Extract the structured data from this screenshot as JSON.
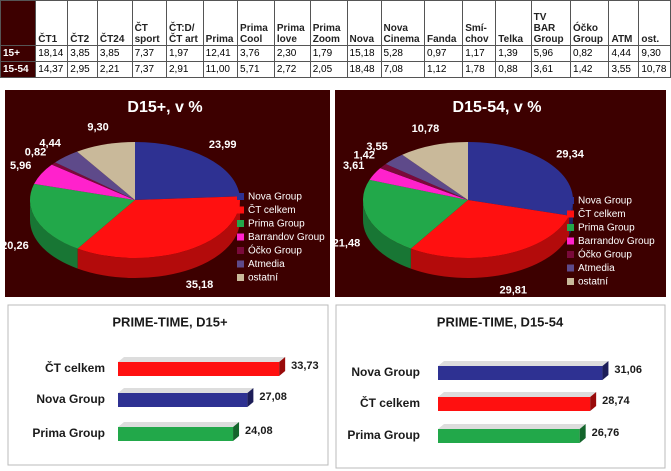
{
  "table": {
    "header": [
      "",
      "ČT1",
      "ČT2",
      "ČT24",
      "ČT\nsport",
      "ČT:D/\nČT art",
      "Prima",
      "Prima\nCool",
      "Prima\nlove",
      "Prima\nZoom",
      "Nova",
      "Nova\nCinema",
      "Fanda",
      "Smí-\nchov",
      "Telka",
      "TV BAR\nGroup",
      "Óčko\nGroup",
      "ATM",
      "ost."
    ],
    "rows": [
      [
        "15+",
        "18,14",
        "3,85",
        "3,85",
        "7,37",
        "1,97",
        "12,41",
        "3,76",
        "2,30",
        "1,79",
        "15,18",
        "5,28",
        "0,97",
        "1,17",
        "1,39",
        "5,96",
        "0,82",
        "4,44",
        "9,30"
      ],
      [
        "15-54",
        "14,37",
        "2,95",
        "2,21",
        "7,37",
        "2,91",
        "11,00",
        "5,71",
        "2,72",
        "2,05",
        "18,48",
        "7,08",
        "1,12",
        "1,78",
        "0,88",
        "3,61",
        "1,42",
        "3,55",
        "10,78"
      ]
    ]
  },
  "chart_data": [
    {
      "type": "pie",
      "title": "D15+, v %",
      "categories": [
        "Nova Group",
        "ČT celkem",
        "Prima Group",
        "Barrandov Group",
        "Óčko Group",
        "Atmedia",
        "ostatní"
      ],
      "values": [
        23.99,
        35.18,
        20.26,
        5.96,
        0.82,
        4.44,
        9.3
      ],
      "value_labels": [
        "23,99",
        "35,18",
        "20,26",
        "5,96",
        "0,82",
        "4,44",
        "9,30"
      ],
      "colors": [
        "#2e3192",
        "#ff1010",
        "#22a84a",
        "#ff22cc",
        "#7a0a3a",
        "#5e4a8a",
        "#c9b99a"
      ]
    },
    {
      "type": "pie",
      "title": "D15-54, v %",
      "categories": [
        "Nova Group",
        "ČT celkem",
        "Prima Group",
        "Barrandov Group",
        "Óčko Group",
        "Atmedia",
        "ostatní"
      ],
      "values": [
        29.34,
        29.81,
        21.48,
        3.61,
        1.42,
        3.55,
        10.78
      ],
      "value_labels": [
        "29,34",
        "29,81",
        "21,48",
        "3,61",
        "1,42",
        "3,55",
        "10,78"
      ],
      "colors": [
        "#2e3192",
        "#ff1010",
        "#22a84a",
        "#ff22cc",
        "#7a0a3a",
        "#5e4a8a",
        "#c9b99a"
      ]
    },
    {
      "type": "bar",
      "orientation": "horizontal",
      "title": "PRIME-TIME, D15+",
      "categories": [
        "ČT celkem",
        "Nova Group",
        "Prima Group"
      ],
      "values": [
        33.73,
        27.08,
        24.08
      ],
      "value_labels": [
        "33,73",
        "27,08",
        "24,08"
      ],
      "colors": [
        "#ff1010",
        "#2e3192",
        "#22a84a"
      ],
      "xlim": [
        0,
        36
      ]
    },
    {
      "type": "bar",
      "orientation": "horizontal",
      "title": "PRIME-TIME, D15-54",
      "categories": [
        "Nova Group",
        "ČT celkem",
        "Prima Group"
      ],
      "values": [
        31.06,
        28.74,
        26.76
      ],
      "value_labels": [
        "31,06",
        "28,74",
        "26,76"
      ],
      "colors": [
        "#2e3192",
        "#ff1010",
        "#22a84a"
      ],
      "xlim": [
        0,
        34
      ]
    }
  ]
}
